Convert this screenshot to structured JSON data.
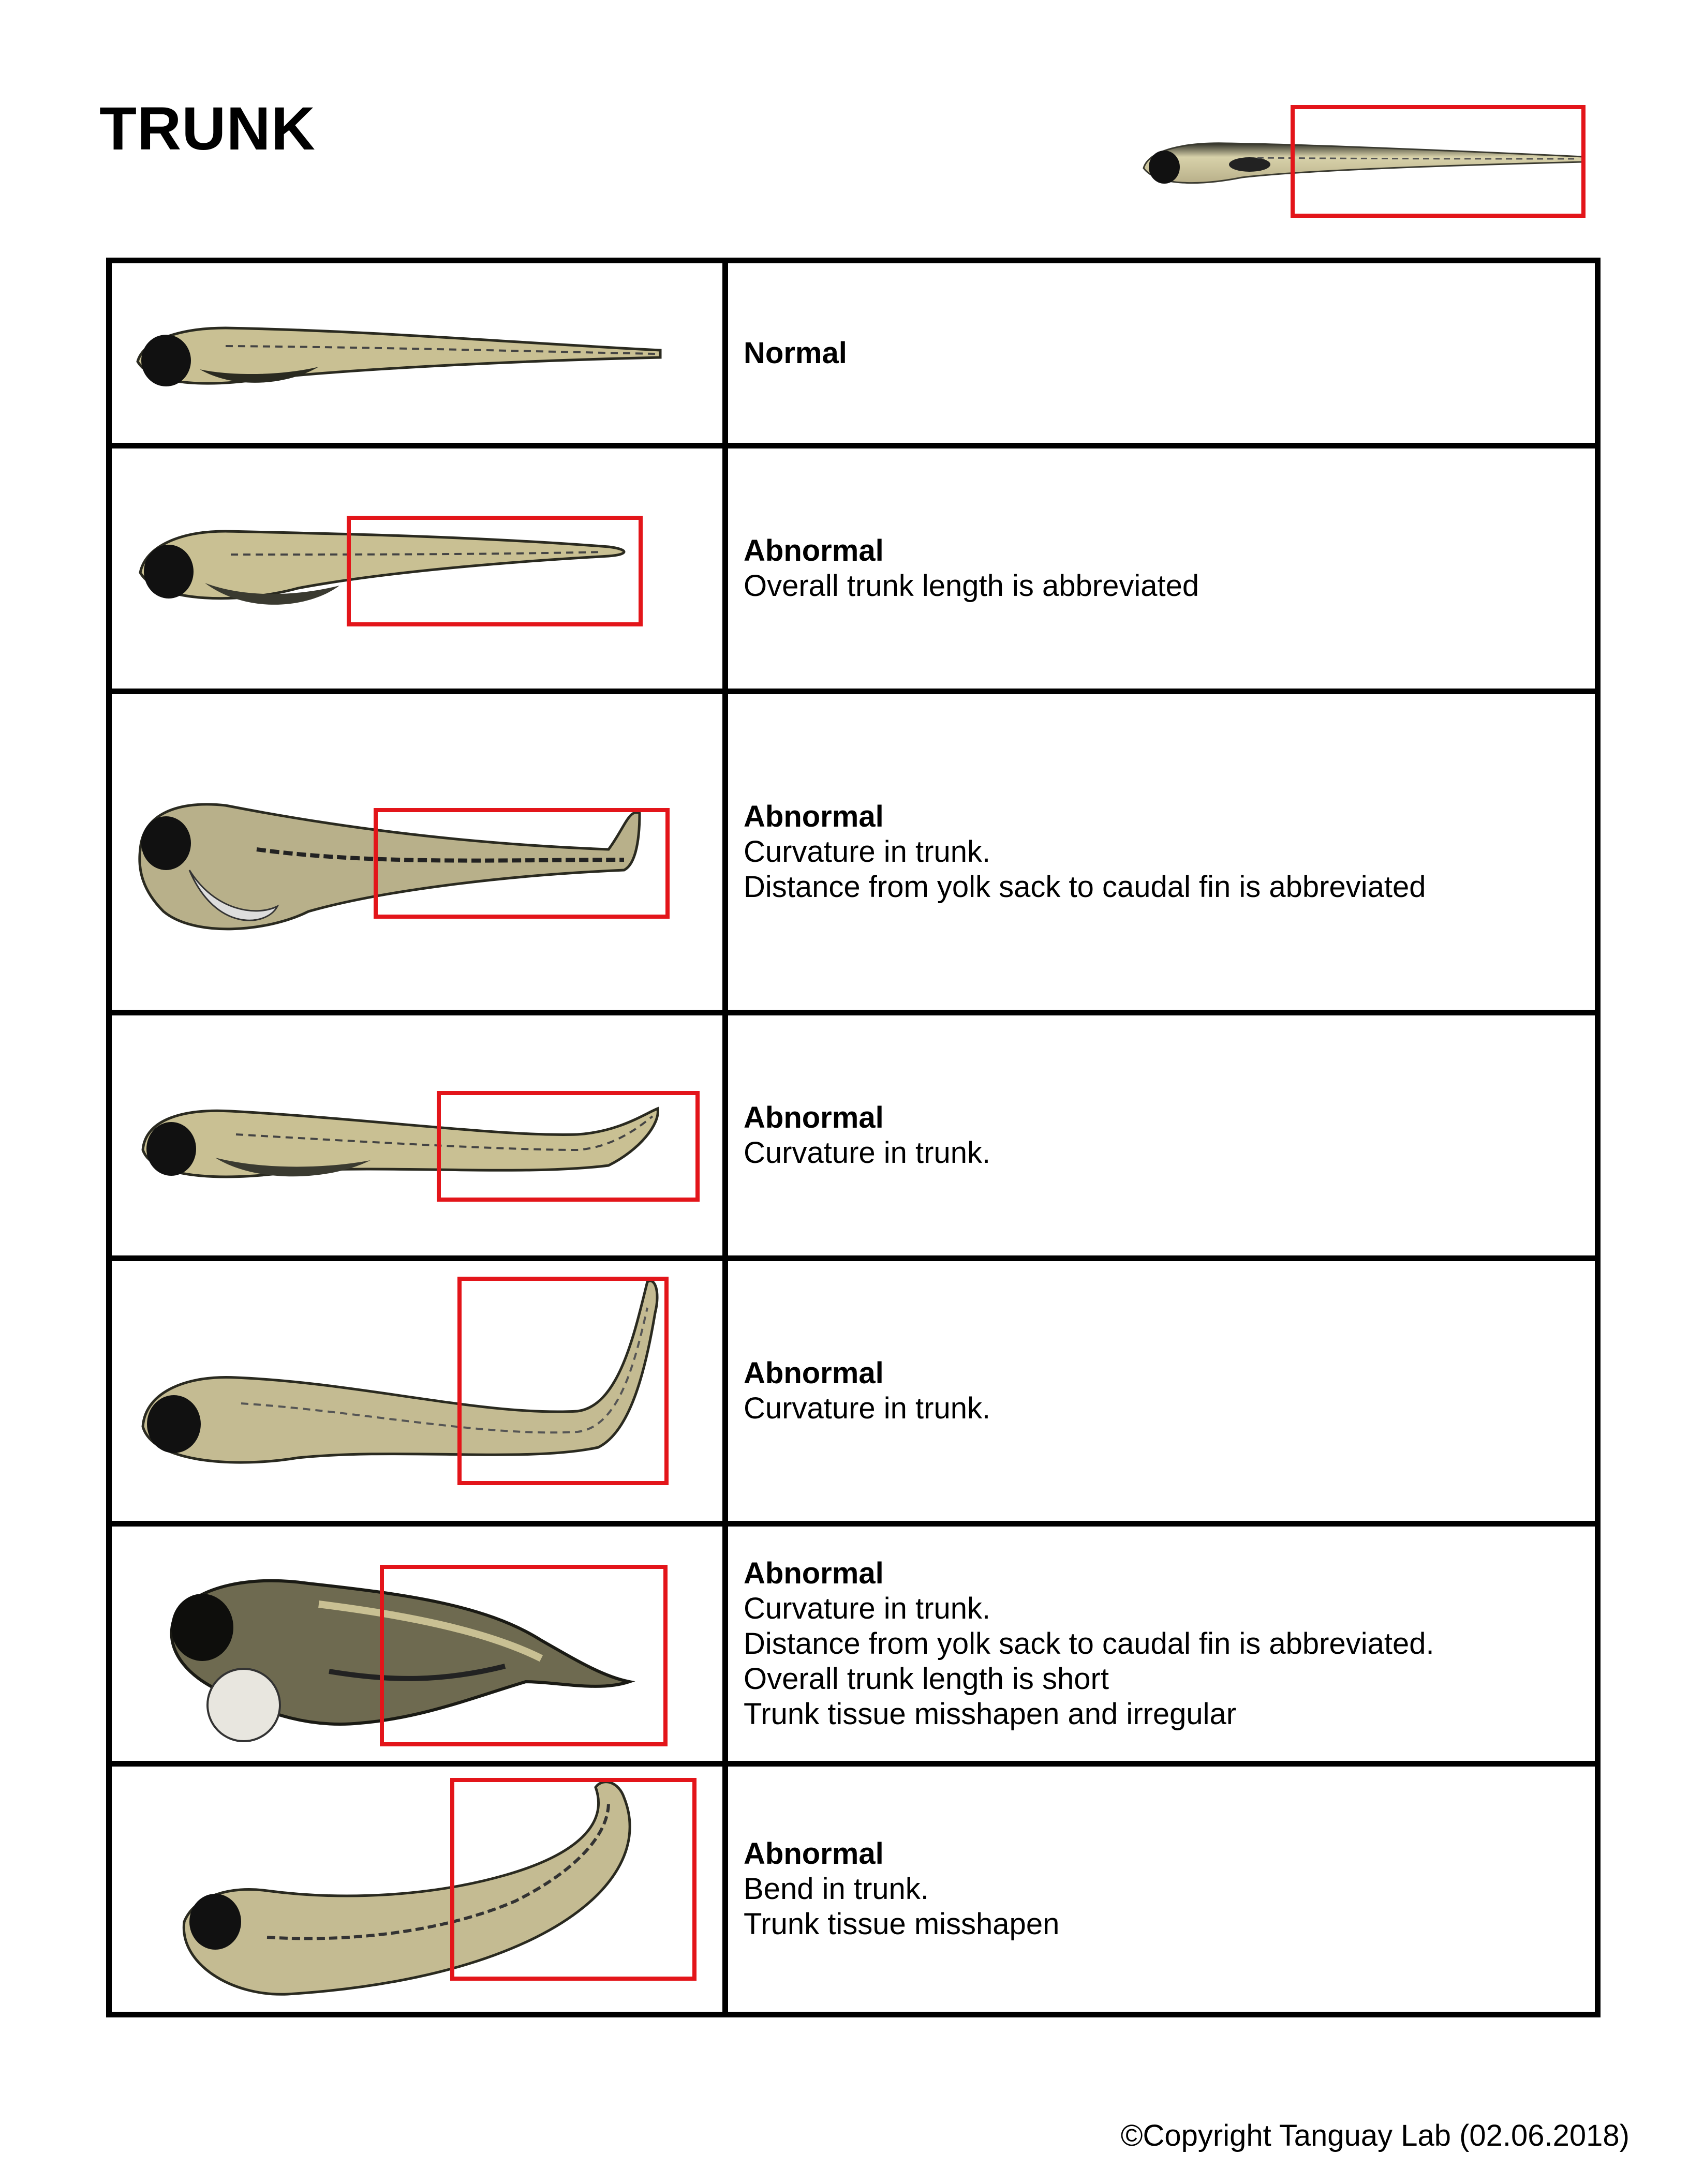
{
  "title": "TRUNK",
  "icons": {
    "reference": "zebrafish-reference-icon",
    "larva": "zebrafish-larva-icon",
    "highlight": "red-highlight-box"
  },
  "colors": {
    "highlight": "#e3151a",
    "border": "#000000",
    "larva_body": "#c9c093",
    "larva_pigment": "#2a2a20"
  },
  "rows": [
    {
      "status": "Normal",
      "lines": []
    },
    {
      "status": "Abnormal",
      "lines": [
        "Overall trunk length is abbreviated"
      ]
    },
    {
      "status": "Abnormal",
      "lines": [
        "Curvature in trunk.",
        "Distance from yolk sack to caudal fin is abbreviated"
      ]
    },
    {
      "status": "Abnormal",
      "lines": [
        "Curvature in trunk."
      ]
    },
    {
      "status": "Abnormal",
      "lines": [
        "Curvature in trunk."
      ]
    },
    {
      "status": "Abnormal",
      "lines": [
        "Curvature in trunk.",
        "Distance from yolk sack to caudal fin is abbreviated.",
        "Overall trunk length is short",
        "Trunk tissue misshapen and irregular"
      ]
    },
    {
      "status": "Abnormal",
      "lines": [
        "Bend in trunk.",
        "Trunk tissue misshapen"
      ]
    }
  ],
  "copyright": "©Copyright Tanguay Lab (02.06.2018)"
}
